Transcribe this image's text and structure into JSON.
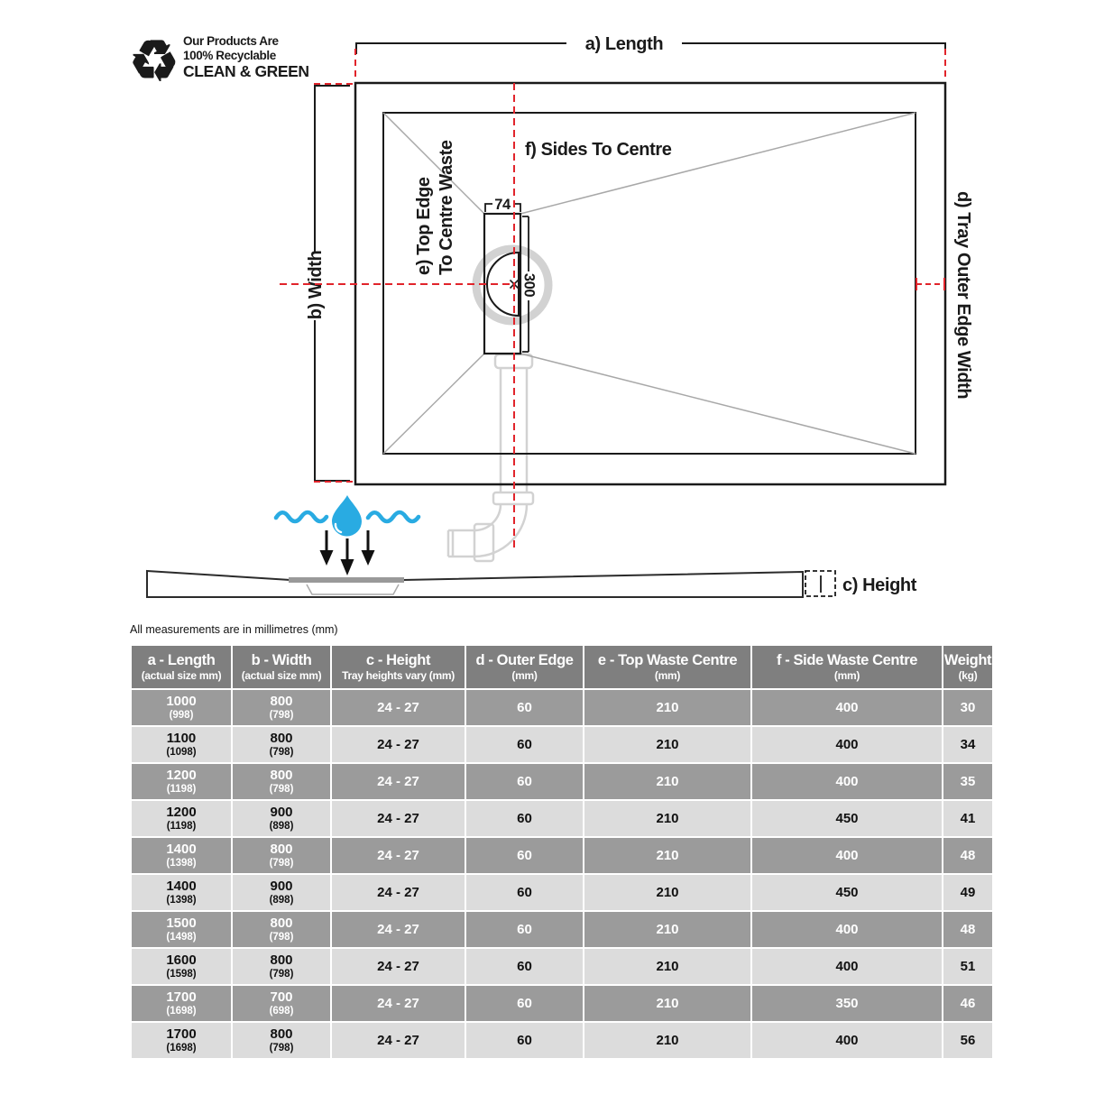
{
  "branding": {
    "icon_glyph": "♻",
    "line1": "Our Products Are",
    "line2": "100% Recyclable",
    "line3": "CLEAN & GREEN",
    "color": "#e1242b"
  },
  "diagram": {
    "labels": {
      "length": "a) Length",
      "width": "b) Width",
      "height": "c) Height",
      "outer_edge": "d) Tray Outer Edge Width",
      "top_edge_line1": "e) Top Edge",
      "top_edge_line2": "To Centre Waste",
      "sides": "f) Sides To Centre"
    },
    "dimensions": {
      "waste_width": "74",
      "waste_length": "300"
    },
    "colors": {
      "dashed_line_red": "#e1242b",
      "water_blue": "#29abe2",
      "diagonal_gray": "#a8a8a8",
      "pipe_gray": "#d2d2d2"
    }
  },
  "table": {
    "note": "All measurements are in millimetres (mm)",
    "columns": [
      {
        "title": "a - Length",
        "sub": "(actual size mm)"
      },
      {
        "title": "b - Width",
        "sub": "(actual size mm)"
      },
      {
        "title": "c - Height",
        "sub": "Tray heights vary (mm)"
      },
      {
        "title": "d - Outer Edge",
        "sub": "(mm)"
      },
      {
        "title": "e - Top Waste Centre",
        "sub": "(mm)"
      },
      {
        "title": "f - Side Waste Centre",
        "sub": "(mm)"
      },
      {
        "title": "Weight",
        "sub": "(kg)"
      }
    ],
    "rows": [
      {
        "length": "1000",
        "length_actual": "(998)",
        "width": "800",
        "width_actual": "(798)",
        "height": "24 - 27",
        "outer_edge": "60",
        "top_waste": "210",
        "side_waste": "400",
        "weight": "30"
      },
      {
        "length": "1100",
        "length_actual": "(1098)",
        "width": "800",
        "width_actual": "(798)",
        "height": "24 - 27",
        "outer_edge": "60",
        "top_waste": "210",
        "side_waste": "400",
        "weight": "34"
      },
      {
        "length": "1200",
        "length_actual": "(1198)",
        "width": "800",
        "width_actual": "(798)",
        "height": "24 - 27",
        "outer_edge": "60",
        "top_waste": "210",
        "side_waste": "400",
        "weight": "35"
      },
      {
        "length": "1200",
        "length_actual": "(1198)",
        "width": "900",
        "width_actual": "(898)",
        "height": "24 - 27",
        "outer_edge": "60",
        "top_waste": "210",
        "side_waste": "450",
        "weight": "41"
      },
      {
        "length": "1400",
        "length_actual": "(1398)",
        "width": "800",
        "width_actual": "(798)",
        "height": "24 - 27",
        "outer_edge": "60",
        "top_waste": "210",
        "side_waste": "400",
        "weight": "48"
      },
      {
        "length": "1400",
        "length_actual": "(1398)",
        "width": "900",
        "width_actual": "(898)",
        "height": "24 - 27",
        "outer_edge": "60",
        "top_waste": "210",
        "side_waste": "450",
        "weight": "49"
      },
      {
        "length": "1500",
        "length_actual": "(1498)",
        "width": "800",
        "width_actual": "(798)",
        "height": "24 - 27",
        "outer_edge": "60",
        "top_waste": "210",
        "side_waste": "400",
        "weight": "48"
      },
      {
        "length": "1600",
        "length_actual": "(1598)",
        "width": "800",
        "width_actual": "(798)",
        "height": "24 - 27",
        "outer_edge": "60",
        "top_waste": "210",
        "side_waste": "400",
        "weight": "51"
      },
      {
        "length": "1700",
        "length_actual": "(1698)",
        "width": "700",
        "width_actual": "(698)",
        "height": "24 - 27",
        "outer_edge": "60",
        "top_waste": "210",
        "side_waste": "350",
        "weight": "46"
      },
      {
        "length": "1700",
        "length_actual": "(1698)",
        "width": "800",
        "width_actual": "(798)",
        "height": "24 - 27",
        "outer_edge": "60",
        "top_waste": "210",
        "side_waste": "400",
        "weight": "56"
      }
    ]
  }
}
